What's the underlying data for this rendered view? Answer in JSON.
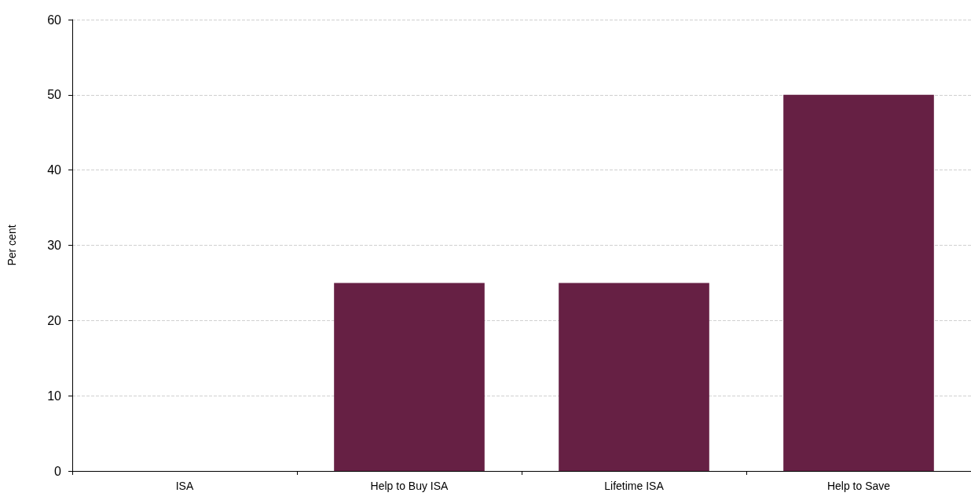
{
  "chart_data": {
    "type": "bar",
    "ylabel": "Per cent",
    "categories": [
      "ISA",
      "Help to Buy ISA",
      "Lifetime ISA",
      "Help to Save"
    ],
    "values": [
      0,
      25,
      25,
      50
    ],
    "color": "#662044",
    "ylim": [
      0,
      60
    ],
    "yticks": [
      0,
      10,
      20,
      30,
      40,
      50,
      60
    ],
    "grid": "y"
  }
}
